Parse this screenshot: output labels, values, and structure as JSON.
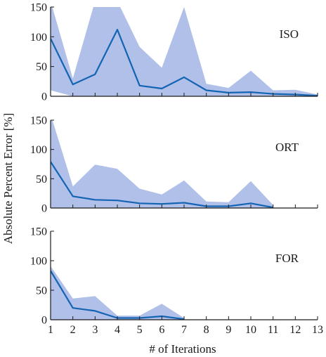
{
  "chart_data": [
    {
      "type": "line",
      "panel_label": "ISO",
      "x": [
        1,
        2,
        3,
        4,
        5,
        6,
        7,
        8,
        9,
        10,
        11,
        12,
        13
      ],
      "series": [
        {
          "values": [
            97,
            20,
            37,
            112,
            18,
            13,
            32,
            10,
            6,
            7,
            4,
            3,
            1
          ]
        }
      ],
      "bands": [
        {
          "upper": [
            160,
            30,
            160,
            160,
            83,
            48,
            150,
            21,
            14,
            43,
            10,
            11,
            3
          ],
          "lower": [
            10,
            0,
            0,
            0,
            0,
            0,
            0,
            0,
            0,
            0,
            0,
            0,
            0
          ]
        }
      ],
      "ylim": [
        0,
        150
      ],
      "yticks": [
        0,
        50,
        100,
        150
      ],
      "xlim": [
        1,
        13
      ],
      "xticks": [
        1,
        2,
        3,
        4,
        5,
        6,
        7,
        8,
        9,
        10,
        11,
        12,
        13
      ],
      "show_x_tick_labels": false,
      "grid": false
    },
    {
      "type": "line",
      "panel_label": "ORT",
      "x": [
        1,
        2,
        3,
        4,
        5,
        6,
        7,
        8,
        9,
        10,
        11
      ],
      "series": [
        {
          "values": [
            79,
            20,
            14,
            13,
            8,
            7,
            9,
            3,
            3,
            8,
            1
          ]
        }
      ],
      "bands": [
        {
          "upper": [
            160,
            37,
            74,
            67,
            33,
            23,
            47,
            11,
            10,
            46,
            5
          ],
          "lower": [
            0,
            0,
            0,
            0,
            0,
            0,
            0,
            0,
            0,
            0,
            0
          ]
        }
      ],
      "ylim": [
        0,
        150
      ],
      "yticks": [
        0,
        50,
        100,
        150
      ],
      "xlim": [
        1,
        13
      ],
      "xticks": [
        1,
        2,
        3,
        4,
        5,
        6,
        7,
        8,
        9,
        10,
        11,
        12,
        13
      ],
      "show_x_tick_labels": false,
      "grid": false
    },
    {
      "type": "line",
      "panel_label": "FOR",
      "x": [
        1,
        2,
        3,
        4,
        5,
        6,
        7
      ],
      "series": [
        {
          "values": [
            83,
            20,
            15,
            3,
            3,
            6,
            1
          ]
        }
      ],
      "bands": [
        {
          "upper": [
            91,
            36,
            40,
            7,
            7,
            27,
            3
          ],
          "lower": [
            0,
            0,
            0,
            0,
            0,
            0,
            0
          ]
        }
      ],
      "ylim": [
        0,
        150
      ],
      "yticks": [
        0,
        50,
        100,
        150
      ],
      "xlim": [
        1,
        13
      ],
      "xticks": [
        1,
        2,
        3,
        4,
        5,
        6,
        7,
        8,
        9,
        10,
        11,
        12,
        13
      ],
      "show_x_tick_labels": true,
      "grid": false
    }
  ],
  "labels": {
    "ylabel": "Absolute Percent Error [%]",
    "xlabel": "# of Iterations"
  },
  "colors": {
    "line": "#1464b4",
    "band": "#b0c0e8",
    "axis": "#1a1a1a",
    "background": "#ffffff"
  }
}
